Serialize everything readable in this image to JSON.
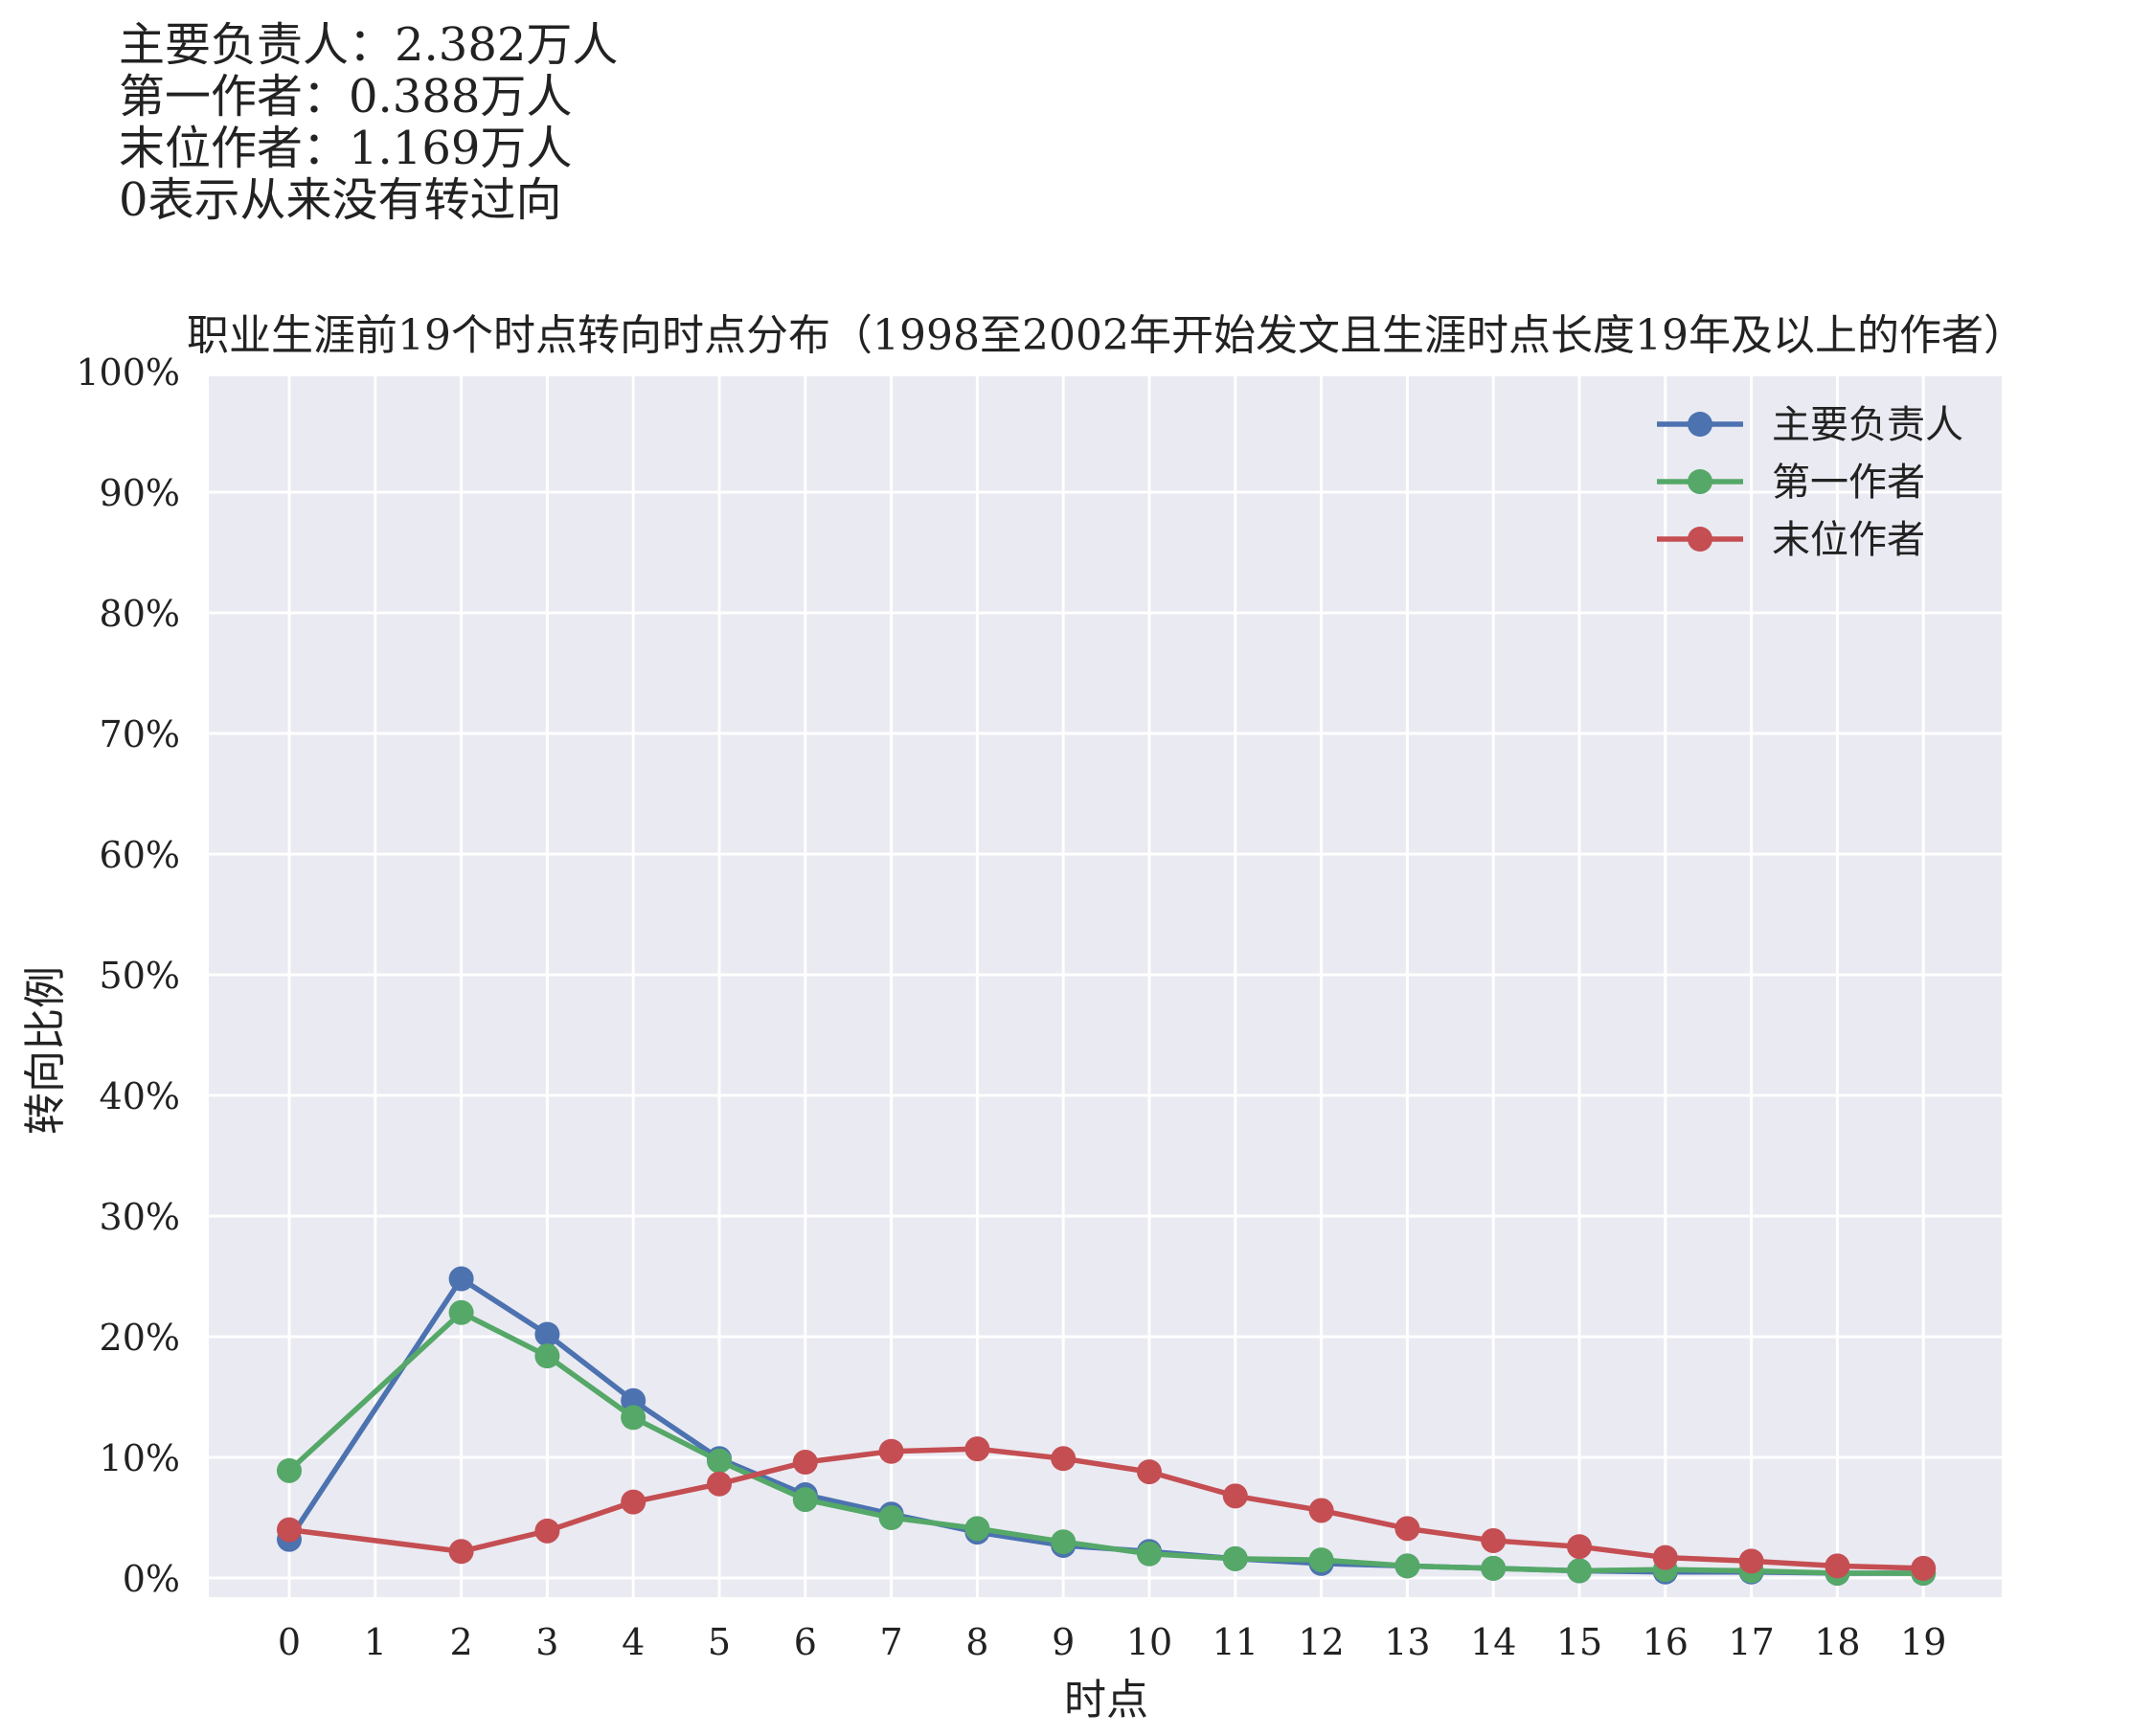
{
  "notes": [
    "主要负责人：2.382万人",
    "第一作者：0.388万人",
    "末位作者：1.169万人",
    "0表示从来没有转过向"
  ],
  "colors": {
    "plot_background": "#EAEAF2",
    "grid": "#FFFFFF",
    "series": [
      "#4C72B0",
      "#55A868",
      "#C44E52"
    ]
  },
  "chart_data": {
    "type": "line",
    "title": "职业生涯前19个时点转向时点分布（1998至2002年开始发文且生涯时点长度19年及以上的作者）",
    "xlabel": "时点",
    "ylabel": "转向比例",
    "x": [
      0,
      1,
      2,
      3,
      4,
      5,
      6,
      7,
      8,
      9,
      10,
      11,
      12,
      13,
      14,
      15,
      16,
      17,
      18,
      19
    ],
    "xtick_labels": [
      "0",
      "1",
      "2",
      "3",
      "4",
      "5",
      "6",
      "7",
      "8",
      "9",
      "10",
      "11",
      "12",
      "13",
      "14",
      "15",
      "16",
      "17",
      "18",
      "19"
    ],
    "ytick_labels": [
      "0%",
      "10%",
      "20%",
      "30%",
      "40%",
      "50%",
      "60%",
      "70%",
      "80%",
      "90%",
      "100%"
    ],
    "ylim": [
      0,
      1
    ],
    "yticks": [
      0,
      0.1,
      0.2,
      0.3,
      0.4,
      0.5,
      0.6,
      0.7,
      0.8,
      0.9,
      1.0
    ],
    "grid": true,
    "legend_position": "top-right",
    "series": [
      {
        "name": "主要负责人",
        "points": [
          [
            0,
            0.032
          ],
          [
            2,
            0.248
          ],
          [
            3,
            0.202
          ],
          [
            4,
            0.147
          ],
          [
            5,
            0.099
          ],
          [
            6,
            0.069
          ],
          [
            7,
            0.053
          ],
          [
            8,
            0.038
          ],
          [
            9,
            0.027
          ],
          [
            10,
            0.022
          ],
          [
            11,
            0.016
          ],
          [
            12,
            0.012
          ],
          [
            13,
            0.01
          ],
          [
            14,
            0.008
          ],
          [
            15,
            0.006
          ],
          [
            16,
            0.005
          ],
          [
            17,
            0.005
          ],
          [
            18,
            0.004
          ],
          [
            19,
            0.004
          ]
        ]
      },
      {
        "name": "第一作者",
        "points": [
          [
            0,
            0.089
          ],
          [
            2,
            0.22
          ],
          [
            3,
            0.184
          ],
          [
            4,
            0.133
          ],
          [
            5,
            0.097
          ],
          [
            6,
            0.065
          ],
          [
            7,
            0.05
          ],
          [
            8,
            0.041
          ],
          [
            9,
            0.03
          ],
          [
            10,
            0.02
          ],
          [
            11,
            0.016
          ],
          [
            12,
            0.015
          ],
          [
            13,
            0.01
          ],
          [
            14,
            0.008
          ],
          [
            15,
            0.006
          ],
          [
            16,
            0.007
          ],
          [
            17,
            0.006
          ],
          [
            18,
            0.004
          ],
          [
            19,
            0.004
          ]
        ]
      },
      {
        "name": "末位作者",
        "points": [
          [
            0,
            0.04
          ],
          [
            2,
            0.022
          ],
          [
            3,
            0.039
          ],
          [
            4,
            0.063
          ],
          [
            5,
            0.078
          ],
          [
            6,
            0.096
          ],
          [
            7,
            0.105
          ],
          [
            8,
            0.107
          ],
          [
            9,
            0.099
          ],
          [
            10,
            0.088
          ],
          [
            11,
            0.068
          ],
          [
            12,
            0.056
          ],
          [
            13,
            0.041
          ],
          [
            14,
            0.031
          ],
          [
            15,
            0.026
          ],
          [
            16,
            0.017
          ],
          [
            17,
            0.014
          ],
          [
            18,
            0.01
          ],
          [
            19,
            0.008
          ]
        ]
      }
    ]
  }
}
